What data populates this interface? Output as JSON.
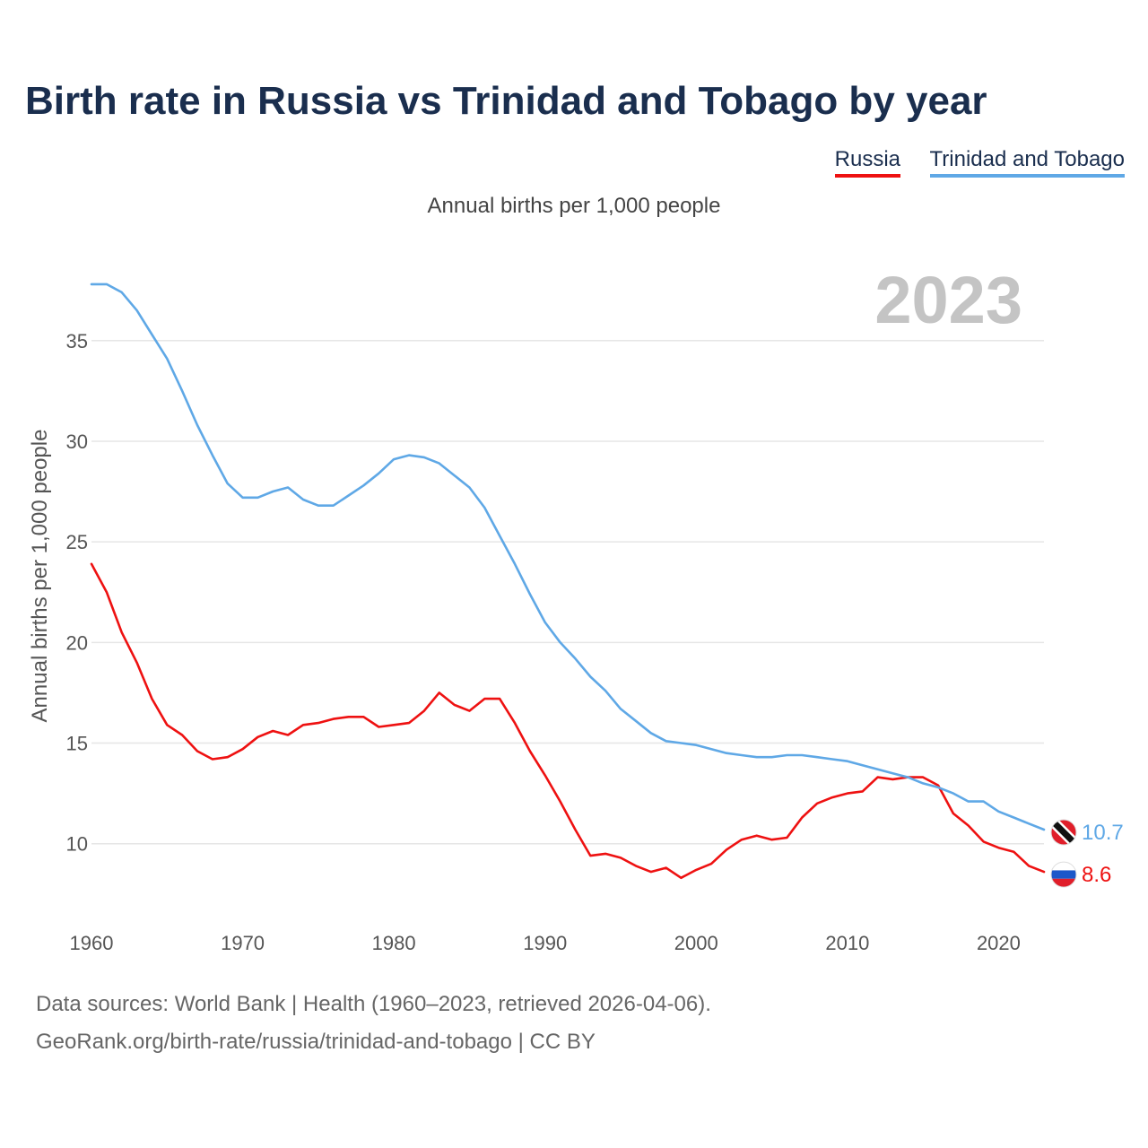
{
  "title": "Birth rate in Russia vs Trinidad and Tobago by year",
  "subtitle": "Annual births per 1,000 people",
  "legend": {
    "russia": "Russia",
    "tt": "Trinidad and Tobago"
  },
  "colors": {
    "russia": "#ee1111",
    "tt": "#5fa8e6",
    "title": "#1a2e4e",
    "year_watermark": "#c4c4c4"
  },
  "footer": {
    "source": "Data sources: World Bank | Health (1960–2023, retrieved 2026-04-06).",
    "credit": "GeoRank.org/birth-rate/russia/trinidad-and-tobago | CC BY"
  },
  "chart_data": {
    "type": "line",
    "title": "Birth rate in Russia vs Trinidad and Tobago by year",
    "xlabel": "",
    "ylabel": "Annual births per 1,000 people",
    "year_label": "2023",
    "xlim": [
      1960,
      2023
    ],
    "ylim": [
      7,
      39
    ],
    "x_ticks": [
      1960,
      1970,
      1980,
      1990,
      2000,
      2010,
      2020
    ],
    "y_ticks": [
      10,
      15,
      20,
      25,
      30,
      35
    ],
    "grid": true,
    "x": [
      1960,
      1961,
      1962,
      1963,
      1964,
      1965,
      1966,
      1967,
      1968,
      1969,
      1970,
      1971,
      1972,
      1973,
      1974,
      1975,
      1976,
      1977,
      1978,
      1979,
      1980,
      1981,
      1982,
      1983,
      1984,
      1985,
      1986,
      1987,
      1988,
      1989,
      1990,
      1991,
      1992,
      1993,
      1994,
      1995,
      1996,
      1997,
      1998,
      1999,
      2000,
      2001,
      2002,
      2003,
      2004,
      2005,
      2006,
      2007,
      2008,
      2009,
      2010,
      2011,
      2012,
      2013,
      2014,
      2015,
      2016,
      2017,
      2018,
      2019,
      2020,
      2021,
      2022,
      2023
    ],
    "series": [
      {
        "name": "Russia",
        "end_label": "8.6",
        "values": [
          23.9,
          22.5,
          20.5,
          19.0,
          17.2,
          15.9,
          15.4,
          14.6,
          14.2,
          14.3,
          14.7,
          15.3,
          15.6,
          15.4,
          15.9,
          16.0,
          16.2,
          16.3,
          16.3,
          15.8,
          15.9,
          16.0,
          16.6,
          17.5,
          16.9,
          16.6,
          17.2,
          17.2,
          16.0,
          14.6,
          13.4,
          12.1,
          10.7,
          9.4,
          9.5,
          9.3,
          8.9,
          8.6,
          8.8,
          8.3,
          8.7,
          9.0,
          9.7,
          10.2,
          10.4,
          10.2,
          10.3,
          11.3,
          12.0,
          12.3,
          12.5,
          12.6,
          13.3,
          13.2,
          13.3,
          13.3,
          12.9,
          11.5,
          10.9,
          10.1,
          9.8,
          9.6,
          8.9,
          8.6
        ]
      },
      {
        "name": "Trinidad and Tobago",
        "end_label": "10.7",
        "values": [
          37.8,
          37.8,
          37.4,
          36.5,
          35.3,
          34.1,
          32.5,
          30.8,
          29.3,
          27.9,
          27.2,
          27.2,
          27.5,
          27.7,
          27.1,
          26.8,
          26.8,
          27.3,
          27.8,
          28.4,
          29.1,
          29.3,
          29.2,
          28.9,
          28.3,
          27.7,
          26.7,
          25.3,
          23.9,
          22.4,
          21.0,
          20.0,
          19.2,
          18.3,
          17.6,
          16.7,
          16.1,
          15.5,
          15.1,
          15.0,
          14.9,
          14.7,
          14.5,
          14.4,
          14.3,
          14.3,
          14.4,
          14.4,
          14.3,
          14.2,
          14.1,
          13.9,
          13.7,
          13.5,
          13.3,
          13.0,
          12.8,
          12.5,
          12.1,
          12.1,
          11.6,
          11.3,
          11.0,
          10.7
        ]
      }
    ]
  }
}
